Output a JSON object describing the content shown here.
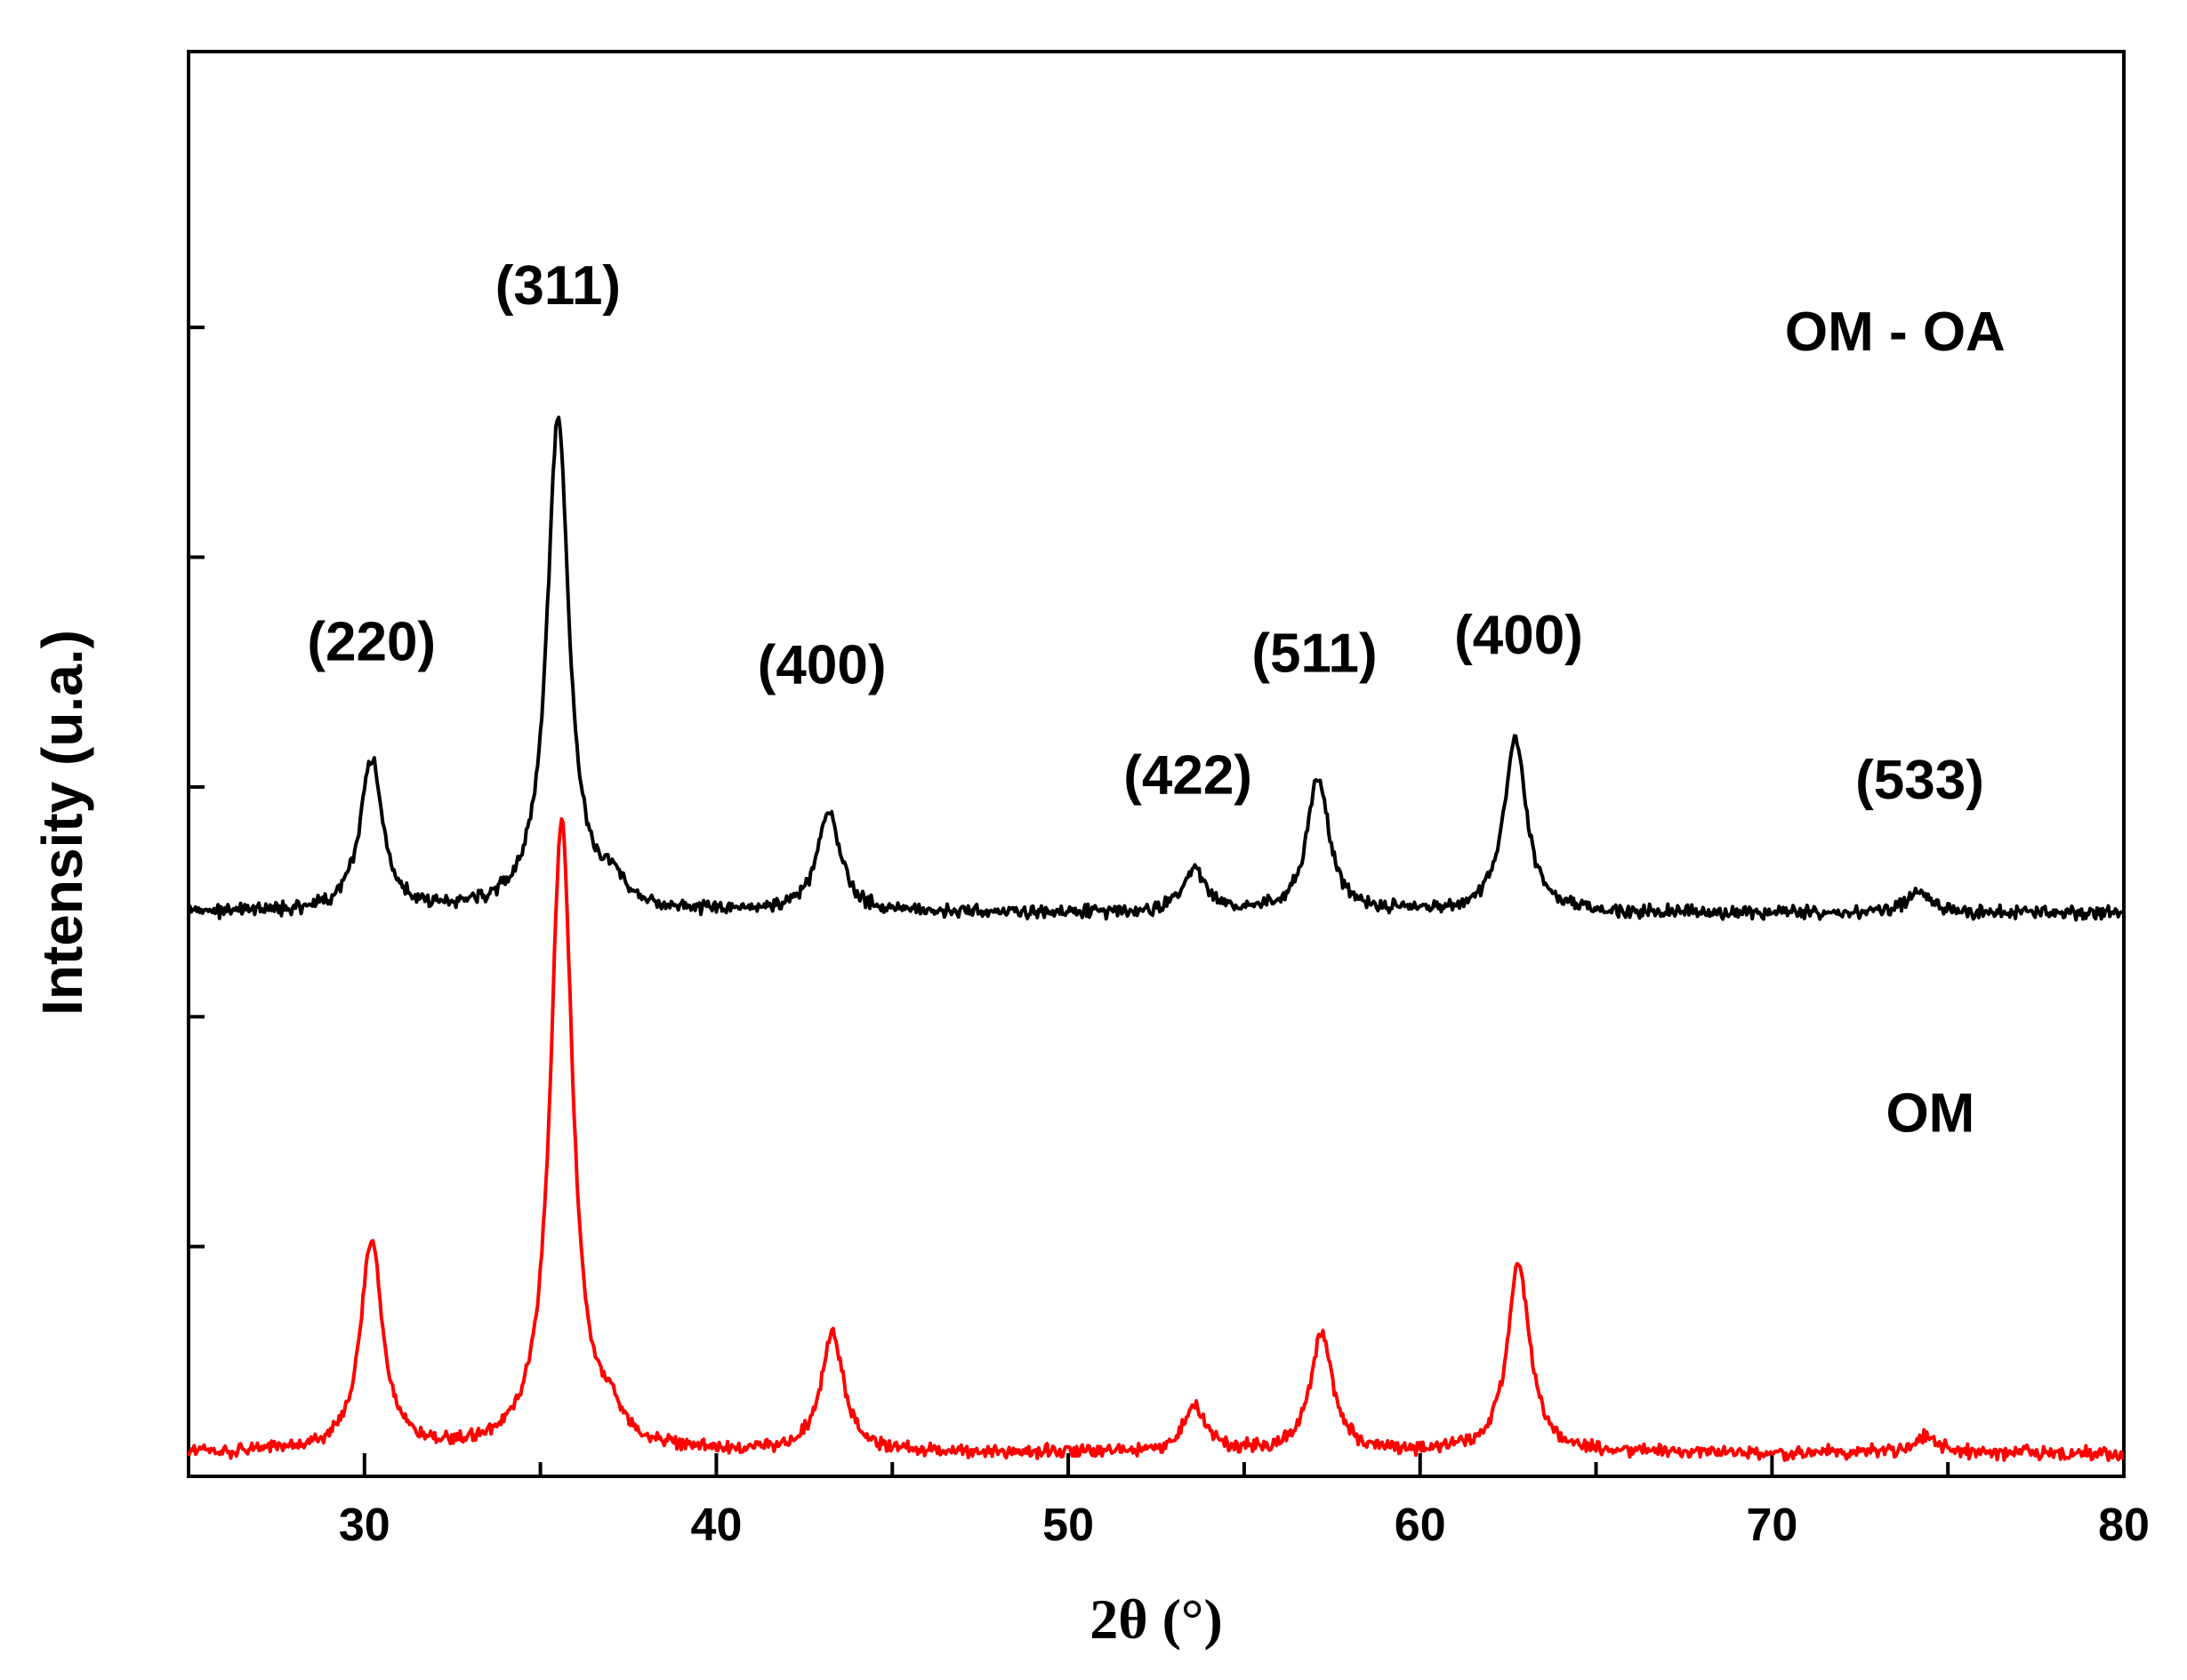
{
  "chart_data": {
    "type": "line",
    "xlabel": "2θ (°)",
    "ylabel": "Intensity (u.a.)",
    "xlim": [
      25,
      80
    ],
    "ylim": [
      0,
      6.2
    ],
    "x_ticks": [
      30,
      40,
      50,
      60,
      70,
      80
    ],
    "y_ticks_labeled": false,
    "grid": false,
    "series": [
      {
        "name": "OM - OA",
        "color": "#000000",
        "baseline": 2.45,
        "peaks": [
          {
            "x": 30.2,
            "height": 0.67
          },
          {
            "x": 35.5,
            "height": 2.15
          },
          {
            "x": 37.0,
            "height": 0.1
          },
          {
            "x": 43.2,
            "height": 0.45
          },
          {
            "x": 53.6,
            "height": 0.18
          },
          {
            "x": 57.1,
            "height": 0.58
          },
          {
            "x": 62.7,
            "height": 0.77
          },
          {
            "x": 74.2,
            "height": 0.1
          }
        ]
      },
      {
        "name": "OM",
        "color": "#ff0000",
        "baseline": 0.1,
        "peaks": [
          {
            "x": 30.2,
            "height": 0.92
          },
          {
            "x": 35.6,
            "height": 2.75
          },
          {
            "x": 37.0,
            "height": 0.1
          },
          {
            "x": 43.3,
            "height": 0.52
          },
          {
            "x": 53.6,
            "height": 0.2
          },
          {
            "x": 57.2,
            "height": 0.52
          },
          {
            "x": 62.8,
            "height": 0.82
          },
          {
            "x": 74.4,
            "height": 0.08
          }
        ]
      }
    ],
    "peak_labels": [
      {
        "text": "(220)",
        "x": 30.2,
        "y": 3.55
      },
      {
        "text": "(311)",
        "x": 35.5,
        "y": 5.1
      },
      {
        "text": "(400)",
        "x": 43.0,
        "y": 3.45
      },
      {
        "text": "(422)",
        "x": 53.4,
        "y": 2.97
      },
      {
        "text": "(511)",
        "x": 57.0,
        "y": 3.5
      },
      {
        "text": "(400)",
        "x": 62.8,
        "y": 3.58
      },
      {
        "text": "(533)",
        "x": 74.2,
        "y": 2.95
      }
    ],
    "series_labels": [
      {
        "text": "OM - OA",
        "x": 73.5,
        "y": 4.9
      },
      {
        "text": "OM",
        "x": 74.5,
        "y": 1.5
      }
    ]
  }
}
